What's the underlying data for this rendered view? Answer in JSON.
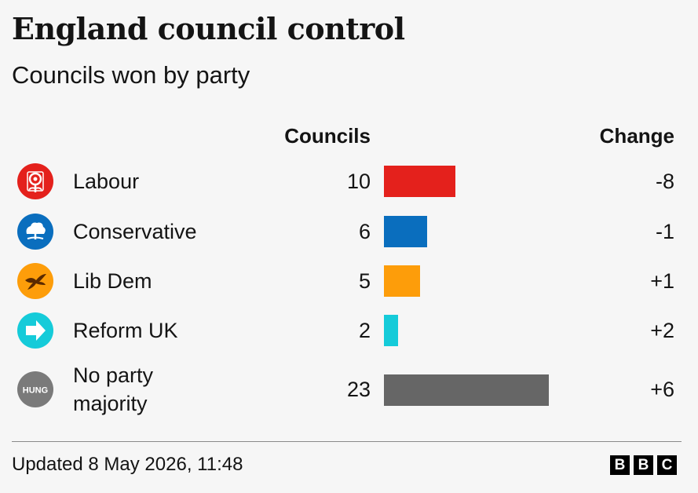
{
  "header": {
    "title": "England council control",
    "subtitle": "Councils won by party"
  },
  "columns": {
    "councils": "Councils",
    "change": "Change"
  },
  "chart_data": {
    "type": "bar",
    "categories": [
      "Labour",
      "Conservative",
      "Lib Dem",
      "Reform UK",
      "No party majority"
    ],
    "values": [
      10,
      6,
      5,
      2,
      23
    ],
    "changes": [
      "-8",
      "-1",
      "+1",
      "+2",
      "+6"
    ],
    "colors": [
      "#e4211c",
      "#0a6ebe",
      "#fd9d0a",
      "#15cbd9",
      "#666666"
    ],
    "title": "England council control",
    "subtitle": "Councils won by party",
    "orientation": "horizontal",
    "xlim": [
      0,
      23
    ]
  },
  "rows": [
    {
      "party": "Labour",
      "icon": "labour-rose-icon",
      "councils": "10",
      "change": "-8"
    },
    {
      "party": "Conservative",
      "icon": "conservative-tree-icon",
      "councils": "6",
      "change": "-1"
    },
    {
      "party": "Lib Dem",
      "icon": "lib-dem-bird-icon",
      "councils": "5",
      "change": "+1"
    },
    {
      "party": "Reform UK",
      "icon": "reform-arrow-icon",
      "councils": "2",
      "change": "+2"
    },
    {
      "party": "No party\nmajority",
      "icon": "hung-badge-icon",
      "icon_text": "HUNG",
      "councils": "23",
      "change": "+6"
    }
  ],
  "footer": {
    "updated": "Updated 8 May 2026, 11:48",
    "logo_letters": [
      "B",
      "B",
      "C"
    ]
  }
}
